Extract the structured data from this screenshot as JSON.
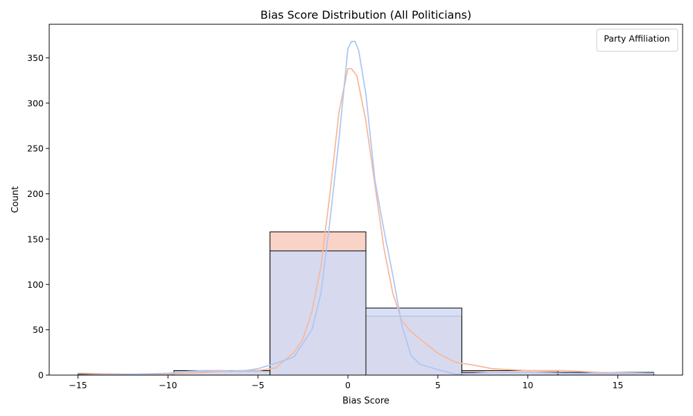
{
  "chart_data": {
    "type": "histogram",
    "title": "Bias Score Distribution (All Politicians)",
    "xlabel": "Bias Score",
    "ylabel": "Count",
    "xlim": [
      -16.6,
      18.6
    ],
    "ylim": [
      0,
      387
    ],
    "x_ticks": [
      -15,
      -10,
      -5,
      0,
      5,
      10,
      15
    ],
    "y_ticks": [
      0,
      50,
      100,
      150,
      200,
      250,
      300,
      350
    ],
    "legend": {
      "title": "Party Affiliation",
      "placement": "top-right",
      "entries": []
    },
    "grid": false,
    "bin_edges": [
      -15,
      -9.67,
      -4.33,
      1.0,
      6.33,
      11.67,
      17.0
    ],
    "series": [
      {
        "color": "#f7b89c",
        "fill": "#f9d3c6",
        "values": [
          1,
          4,
          158,
          65,
          5,
          3
        ],
        "kde": {
          "x": [
            -15,
            -12,
            -10,
            -8,
            -6,
            -5,
            -4,
            -3,
            -2.5,
            -2,
            -1.5,
            -1,
            -0.5,
            0,
            0.2,
            0.5,
            1,
            1.5,
            2,
            2.5,
            3,
            3.5,
            4,
            5,
            6,
            7,
            8,
            10,
            12,
            14,
            17
          ],
          "y": [
            2,
            1,
            1,
            3,
            5,
            5,
            8,
            25,
            40,
            70,
            120,
            200,
            290,
            338,
            338,
            330,
            280,
            210,
            140,
            90,
            60,
            48,
            40,
            24,
            14,
            11,
            7,
            5,
            5,
            3,
            2
          ]
        }
      },
      {
        "color": "#aec6f4",
        "fill": "#d1daf4",
        "values": [
          0,
          5,
          137,
          74,
          3,
          2
        ],
        "kde": {
          "x": [
            -15,
            -12,
            -10,
            -9,
            -8,
            -7,
            -6,
            -5,
            -4,
            -3,
            -2,
            -1.5,
            -1,
            -0.5,
            0,
            0.2,
            0.4,
            0.6,
            1,
            1.5,
            2,
            2.5,
            3,
            3.5,
            4,
            5,
            6,
            7,
            8,
            10,
            12,
            14,
            17
          ],
          "y": [
            0,
            1,
            2,
            4,
            5,
            5,
            4,
            7,
            13,
            20,
            50,
            90,
            170,
            260,
            360,
            368,
            368,
            358,
            310,
            215,
            160,
            110,
            55,
            22,
            12,
            6,
            1,
            2,
            3,
            3,
            2,
            2,
            2
          ]
        }
      }
    ]
  }
}
